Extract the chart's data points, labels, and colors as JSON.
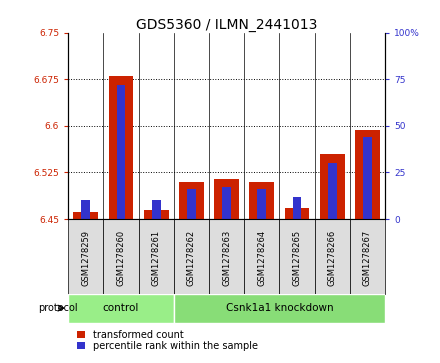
{
  "title": "GDS5360 / ILMN_2441013",
  "samples": [
    "GSM1278259",
    "GSM1278260",
    "GSM1278261",
    "GSM1278262",
    "GSM1278263",
    "GSM1278264",
    "GSM1278265",
    "GSM1278266",
    "GSM1278267"
  ],
  "transformed_count": [
    6.462,
    6.68,
    6.465,
    6.51,
    6.515,
    6.51,
    6.468,
    6.555,
    6.593
  ],
  "percentile_rank": [
    10,
    72,
    10,
    16,
    17,
    16,
    12,
    30,
    44
  ],
  "base_value": 6.45,
  "ylim_left": [
    6.45,
    6.75
  ],
  "ylim_right": [
    0,
    100
  ],
  "yticks_left": [
    6.45,
    6.525,
    6.6,
    6.675,
    6.75
  ],
  "yticks_right": [
    0,
    25,
    50,
    75,
    100
  ],
  "bar_color_red": "#cc2200",
  "bar_color_blue": "#3333cc",
  "group_control": {
    "label": "control",
    "count": 3,
    "color": "#99ee88"
  },
  "group_knockdown": {
    "label": "Csnk1a1 knockdown",
    "count": 6,
    "color": "#88dd77"
  },
  "protocol_label": "protocol",
  "legend_red": "transformed count",
  "legend_blue": "percentile rank within the sample",
  "background_color": "#ffffff",
  "tick_fontsize": 6.5,
  "label_fontsize": 7.5,
  "title_fontsize": 10
}
